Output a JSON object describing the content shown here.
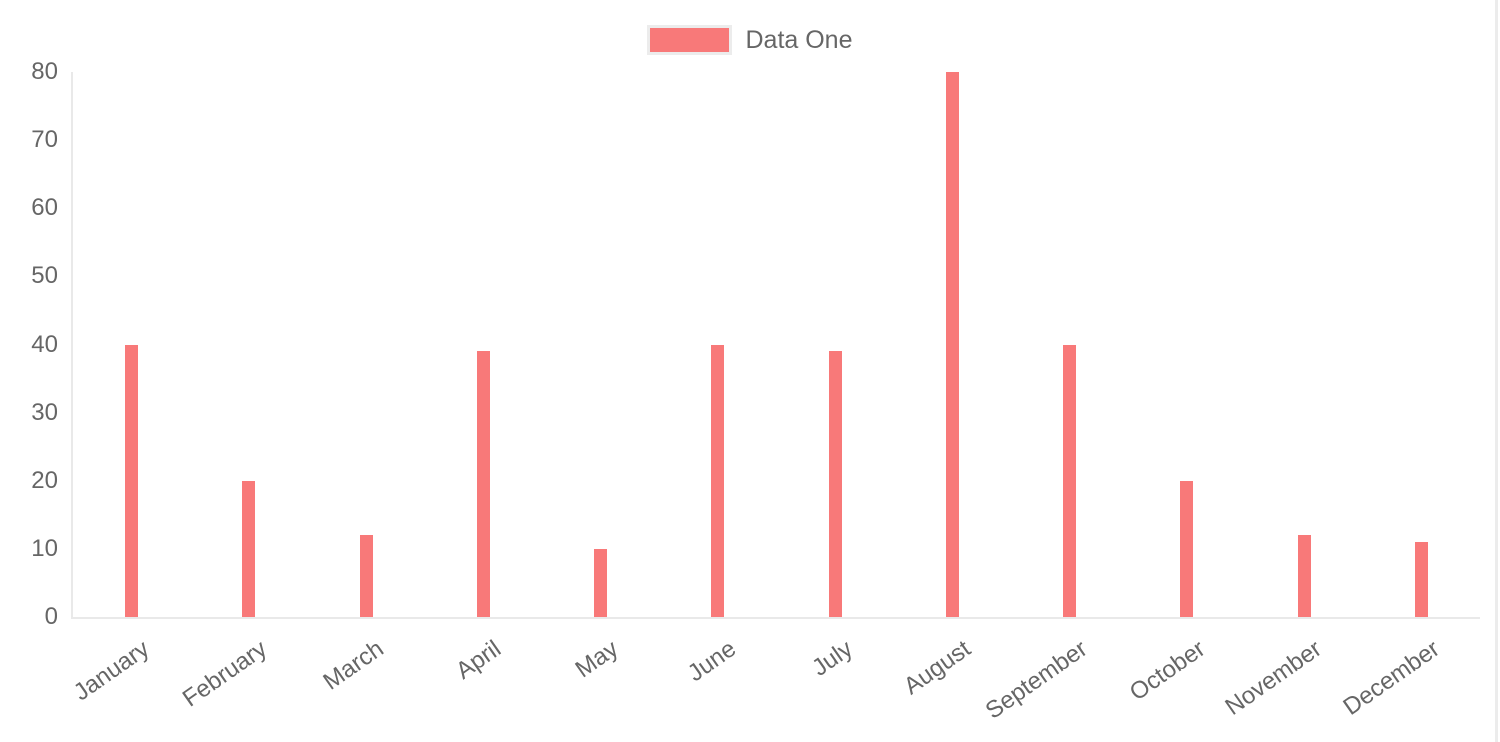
{
  "chart_data": {
    "type": "bar",
    "title": "",
    "xlabel": "",
    "ylabel": "",
    "categories": [
      "January",
      "February",
      "March",
      "April",
      "May",
      "June",
      "July",
      "August",
      "September",
      "October",
      "November",
      "December"
    ],
    "series": [
      {
        "name": "Data One",
        "color": "#f87979",
        "values": [
          40,
          20,
          12,
          39,
          10,
          40,
          39,
          80,
          40,
          20,
          12,
          11
        ]
      }
    ],
    "ylim": [
      0,
      80
    ],
    "yticks": [
      0,
      10,
      20,
      30,
      40,
      50,
      60,
      70,
      80
    ],
    "legend_position": "top",
    "grid": false,
    "x_tick_rotation_deg": -35
  },
  "legend": {
    "items": [
      {
        "label": "Data One",
        "color": "#f87979"
      }
    ]
  },
  "colors": {
    "bar": "#f87979",
    "axis_line": "#e9e9e9",
    "tick_text": "#666666",
    "legend_text": "#666666",
    "legend_swatch_border": "#ececec",
    "page_edge_line": "#ececec"
  }
}
